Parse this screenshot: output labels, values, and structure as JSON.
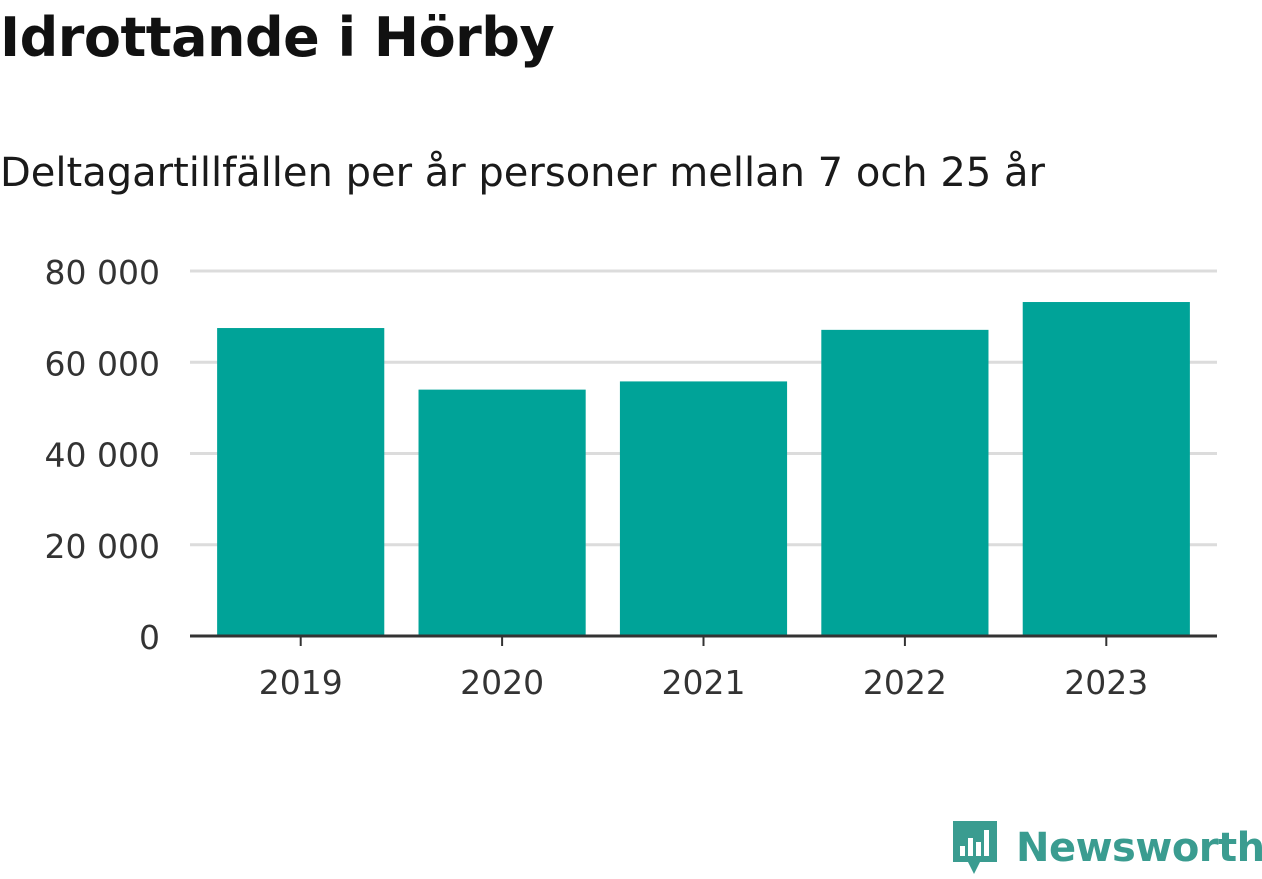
{
  "title": "Idrottande i Hörby",
  "subtitle": "Deltagartillfällen per år personer mellan 7 och 25 år",
  "brand": {
    "name": "Newsworthy",
    "color": "#3a9c90",
    "icon": "newsworthy-logo-icon"
  },
  "chart_data": {
    "type": "bar",
    "categories": [
      "2019",
      "2020",
      "2021",
      "2022",
      "2023"
    ],
    "values": [
      67500,
      54000,
      55800,
      67100,
      73200
    ],
    "ylim": [
      0,
      80000
    ],
    "yticks": [
      0,
      20000,
      40000,
      60000,
      80000
    ],
    "ytick_labels": [
      "0",
      "20 000",
      "40 000",
      "60 000",
      "80 000"
    ],
    "xlabel": "",
    "ylabel": "",
    "bar_color": "#00a398",
    "grid": true,
    "legend": "none"
  }
}
